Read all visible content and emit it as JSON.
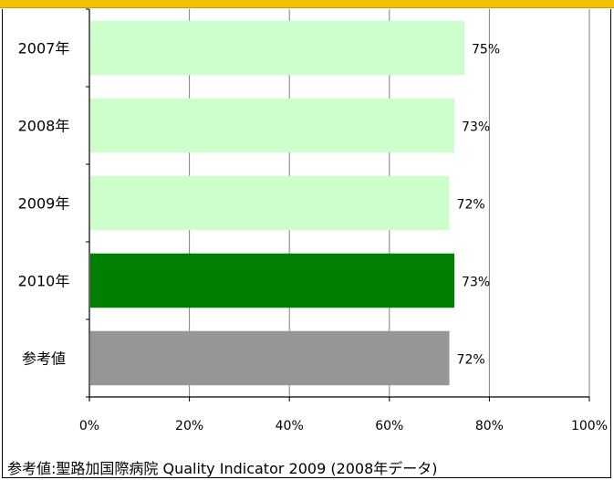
{
  "chart_data": {
    "type": "bar",
    "orientation": "horizontal",
    "categories": [
      "2007年",
      "2008年",
      "2009年",
      "2010年",
      "参考値"
    ],
    "values": [
      75,
      73,
      72,
      73,
      72
    ],
    "value_labels": [
      "75%",
      "73%",
      "72%",
      "73%",
      "72%"
    ],
    "bar_colors": [
      "#ccffcc",
      "#ccffcc",
      "#ccffcc",
      "#008000",
      "#969696"
    ],
    "xlim": [
      0,
      100
    ],
    "x_ticks": [
      "0%",
      "20%",
      "40%",
      "60%",
      "80%",
      "100%"
    ],
    "grid": "vertical"
  },
  "footnote": "参考値:聖路加国際病院  Quality Indicator  2009 (2008年データ)",
  "colors": {
    "top_band": "#f2c200",
    "gridline": "#808080"
  }
}
